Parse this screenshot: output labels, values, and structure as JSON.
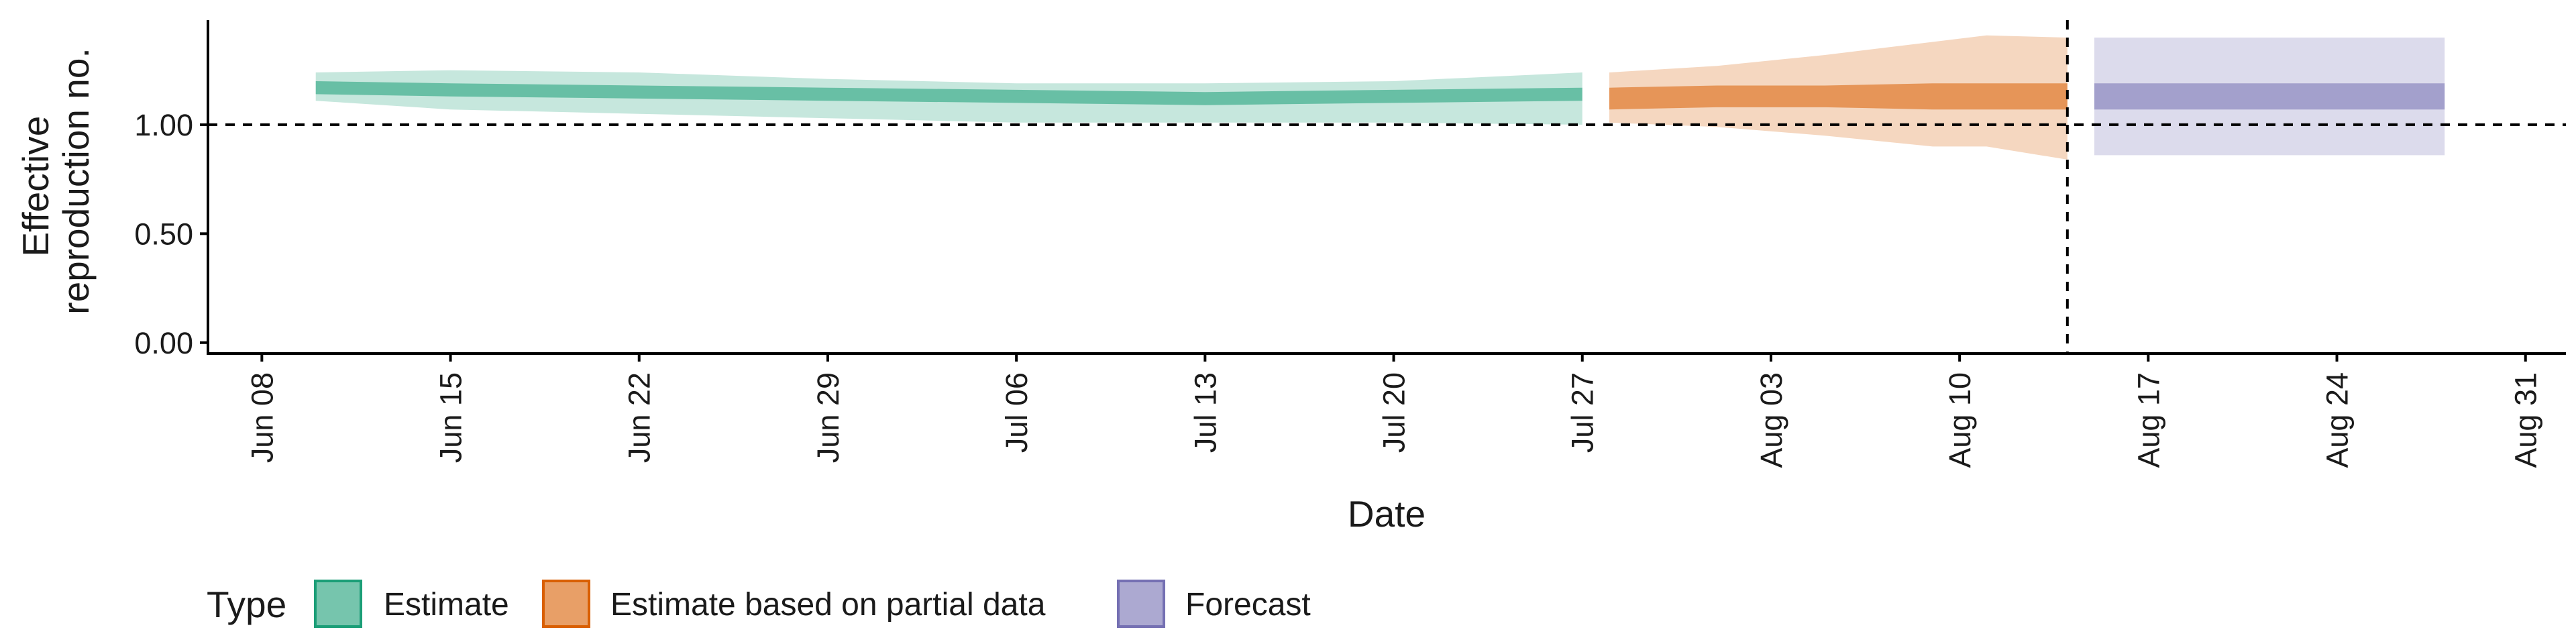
{
  "chart_data": {
    "type": "area",
    "title": "",
    "xlabel": "Date",
    "ylabel_lines": [
      "Effective",
      "reproduction no."
    ],
    "x_ticks": [
      "Jun 08",
      "Jun 15",
      "Jun 22",
      "Jun 29",
      "Jul 06",
      "Jul 13",
      "Jul 20",
      "Jul 27",
      "Aug 03",
      "Aug 10",
      "Aug 17",
      "Aug 24",
      "Aug 31"
    ],
    "x_tick_days": [
      0,
      7,
      14,
      21,
      28,
      35,
      42,
      49,
      56,
      63,
      70,
      77,
      84
    ],
    "xlim_days": [
      -2,
      85.5
    ],
    "y_ticks": [
      "0.00",
      "0.50",
      "1.00"
    ],
    "y_tick_values": [
      0,
      0.5,
      1.0
    ],
    "ylim": [
      -0.05,
      1.48
    ],
    "reference_line_y": 1.0,
    "vertical_line_day": 67,
    "grid": false,
    "legend_position": "bottom-left",
    "legend": {
      "title": "Type",
      "entries": [
        "Estimate",
        "Estimate based on partial data",
        "Forecast"
      ]
    },
    "series": [
      {
        "name": "Estimate",
        "color": "#1b9e77",
        "day": [
          2,
          7,
          14,
          21,
          28,
          35,
          42,
          49
        ],
        "median": [
          1.17,
          1.16,
          1.15,
          1.14,
          1.13,
          1.12,
          1.13,
          1.14
        ],
        "lower_50": [
          1.14,
          1.13,
          1.12,
          1.11,
          1.1,
          1.09,
          1.1,
          1.11
        ],
        "upper_50": [
          1.2,
          1.19,
          1.18,
          1.17,
          1.16,
          1.15,
          1.16,
          1.17
        ],
        "lower_90": [
          1.11,
          1.07,
          1.05,
          1.03,
          1.01,
          1.01,
          1.01,
          1.0
        ],
        "upper_90": [
          1.24,
          1.25,
          1.24,
          1.21,
          1.19,
          1.19,
          1.2,
          1.24
        ]
      },
      {
        "name": "Estimate based on partial data",
        "color": "#d95f02",
        "day": [
          50,
          54,
          58,
          62,
          64,
          67
        ],
        "median": [
          1.12,
          1.13,
          1.13,
          1.13,
          1.14,
          1.13
        ],
        "lower_50": [
          1.07,
          1.08,
          1.08,
          1.07,
          1.07,
          1.07
        ],
        "upper_50": [
          1.17,
          1.18,
          1.18,
          1.19,
          1.19,
          1.19
        ],
        "lower_90": [
          1.01,
          0.99,
          0.95,
          0.9,
          0.9,
          0.84
        ],
        "upper_90": [
          1.24,
          1.27,
          1.32,
          1.38,
          1.41,
          1.4
        ]
      },
      {
        "name": "Forecast",
        "color": "#7570b3",
        "day": [
          68,
          81
        ],
        "median": [
          1.13,
          1.13
        ],
        "lower_50": [
          1.07,
          1.07
        ],
        "upper_50": [
          1.19,
          1.19
        ],
        "lower_90": [
          0.86,
          0.86
        ],
        "upper_90": [
          1.4,
          1.4
        ]
      }
    ]
  }
}
